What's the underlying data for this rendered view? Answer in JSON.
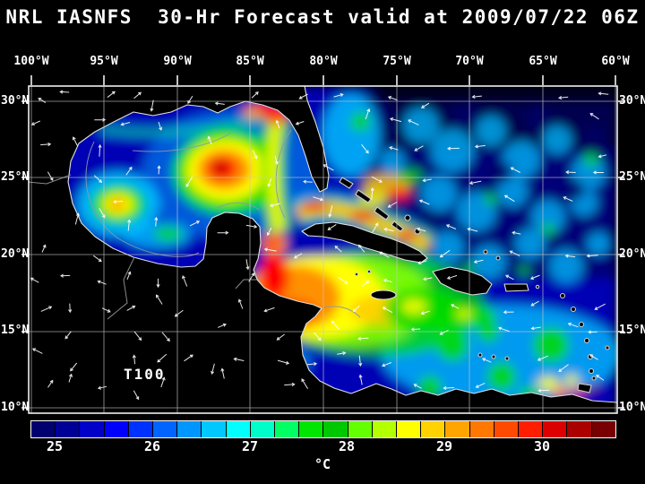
{
  "header": {
    "title": "NRL IASNFS  30-Hr Forecast valid at 2009/07/22 06Z"
  },
  "axes": {
    "lon_labels": [
      "100°W",
      "95°W",
      "90°W",
      "85°W",
      "80°W",
      "75°W",
      "70°W",
      "65°W",
      "60°W"
    ],
    "lat_labels": [
      "30°N",
      "25°N",
      "20°N",
      "15°N",
      "10°N"
    ]
  },
  "map": {
    "annotation": "T100"
  },
  "colorbar": {
    "labels": [
      "25",
      "26",
      "27",
      "28",
      "29",
      "30"
    ],
    "unit": "°C",
    "colors": [
      "#00006e",
      "#000096",
      "#0000c8",
      "#0000ff",
      "#0032ff",
      "#0064ff",
      "#0096ff",
      "#00c8ff",
      "#00ffff",
      "#00ffc8",
      "#00ff64",
      "#00e600",
      "#00c800",
      "#64ff00",
      "#b4ff00",
      "#ffff00",
      "#ffd200",
      "#ffa500",
      "#ff7800",
      "#ff4b00",
      "#ff1e00",
      "#dc0000",
      "#aa0000",
      "#780000"
    ]
  },
  "vectors": {
    "color": "#ffffff"
  },
  "chart_data": {
    "type": "heatmap",
    "title": "NRL IASNFS 30-Hr Forecast valid at 2009/07/22 06Z",
    "model": "NRL IASNFS",
    "forecast_hour": 30,
    "valid_time": "2009/07/22 06Z",
    "variable": "T100 — water temperature at 100 m depth (°C)",
    "region": "Gulf of Mexico / Caribbean Sea / western tropical Atlantic",
    "x_axis": {
      "label": "Longitude",
      "ticks": [
        "100°W",
        "95°W",
        "90°W",
        "85°W",
        "80°W",
        "75°W",
        "70°W",
        "65°W",
        "60°W"
      ],
      "range_deg_west": [
        100,
        60
      ]
    },
    "y_axis": {
      "label": "Latitude",
      "ticks": [
        "30°N",
        "25°N",
        "20°N",
        "15°N",
        "10°N"
      ],
      "range_deg_north": [
        10,
        31
      ]
    },
    "colorbar": {
      "unit": "°C",
      "tick_labels": [
        25,
        26,
        27,
        28,
        29,
        30
      ],
      "approx_range": [
        24.75,
        30.75
      ],
      "n_segments": 24
    },
    "overlay": "white current-vector arrows on regular grid; land masses black with white coastlines; gray bathymetry contours; 5-degree lat/lon grid",
    "approx_features": [
      {
        "name": "Gulf of Mexico warm-core eddy",
        "lon_w": 90.5,
        "lat_n": 25.5,
        "approx_value_c": 30
      },
      {
        "name": "Secondary western Gulf eddy",
        "lon_w": 97.5,
        "lat_n": 23.3,
        "approx_value_c": 28.5
      },
      {
        "name": "Loop Current / north-central Gulf warm band",
        "lon_w": 87.5,
        "lat_n": 29.0,
        "approx_value_c": 29.5
      },
      {
        "name": "Florida Straits / north of Cuba warm band",
        "lon_w": 81.0,
        "lat_n": 24.0,
        "approx_value_c": 29.5
      },
      {
        "name": "NW Caribbean warm pool (off Yucatan/Honduras)",
        "lon_w": 84.0,
        "lat_n": 17.5,
        "approx_value_c": 29.5
      },
      {
        "name": "Central Caribbean",
        "lon_w": 73.0,
        "lat_n": 16.0,
        "approx_value_c": 27.5
      },
      {
        "name": "Atlantic background east of Bahamas",
        "lon_w": 66.0,
        "lat_n": 26.0,
        "approx_value_c": 25.5
      },
      {
        "name": "Warm spot near Trinidad / SE corner",
        "lon_w": 61.5,
        "lat_n": 11.0,
        "approx_value_c": 30
      }
    ]
  }
}
